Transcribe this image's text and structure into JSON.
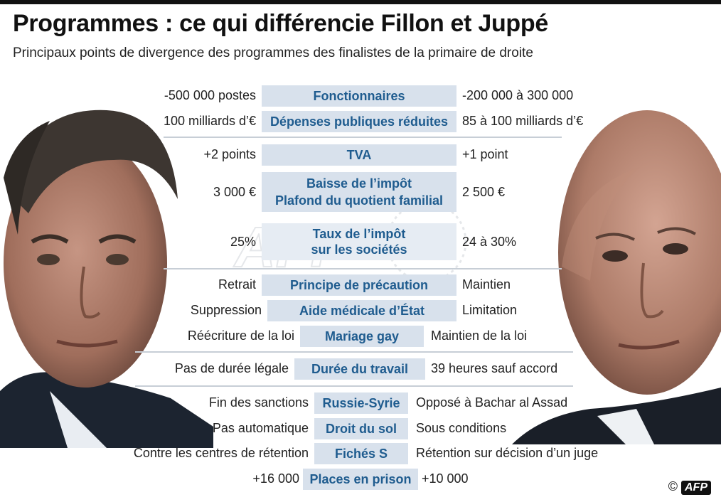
{
  "header": {
    "title": "Programmes : ce qui différencie Fillon et Juppé",
    "subtitle": "Principaux points de divergence des programmes des finalistes de la primaire de droite"
  },
  "rows": [
    {
      "left": "-500 000 postes",
      "topic": "Fonctionnaires",
      "right": "-200 000 à 300 000"
    },
    {
      "left": "100 milliards d’€",
      "topic": "Dépenses publiques réduites",
      "right": "85 à 100 milliards d’€"
    },
    {
      "left": "+2 points",
      "topic": "TVA",
      "right": "+1 point"
    },
    {
      "left": "3 000 €",
      "topic_line1": "Baisse de l’impôt",
      "topic_line2": "Plafond du quotient familial",
      "right": "2 500 €"
    },
    {
      "left": "25%",
      "topic_line1": "Taux de l’impôt",
      "topic_line2": "sur les sociétés",
      "right": "24 à 30%"
    },
    {
      "left": "Retrait",
      "topic": "Principe de précaution",
      "right": "Maintien"
    },
    {
      "left": "Suppression",
      "topic": "Aide médicale d’État",
      "right": "Limitation"
    },
    {
      "left": "Réécriture de la loi",
      "topic": "Mariage gay",
      "right": "Maintien de la loi"
    },
    {
      "left": "Pas de durée légale",
      "topic": "Durée du travail",
      "right": "39 heures sauf accord"
    },
    {
      "left": "Fin des sanctions",
      "topic": "Russie-Syrie",
      "right": "Opposé à Bachar al Assad"
    },
    {
      "left": "Pas automatique",
      "topic": "Droit du sol",
      "right": "Sous conditions"
    },
    {
      "left": "Contre les centres de rétention",
      "topic": "Fichés S",
      "right": "Rétention sur décision d’un juge"
    },
    {
      "left": "+16 000",
      "topic": "Places en prison",
      "right": "+10 000"
    }
  ],
  "footer": {
    "copyright": "©",
    "logo": "AFP"
  },
  "colors": {
    "topic_band": "#d8e1ec",
    "topic_text": "#1f5c8f",
    "separator": "#c7ced6"
  }
}
